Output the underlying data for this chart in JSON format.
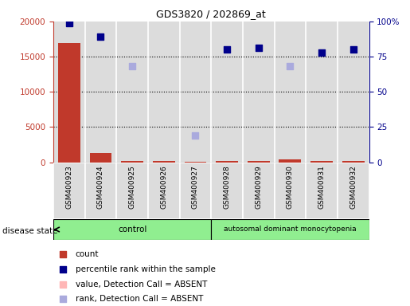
{
  "title": "GDS3820 / 202869_at",
  "samples": [
    "GSM400923",
    "GSM400924",
    "GSM400925",
    "GSM400926",
    "GSM400927",
    "GSM400928",
    "GSM400929",
    "GSM400930",
    "GSM400931",
    "GSM400932"
  ],
  "count": [
    16900,
    1300,
    200,
    150,
    100,
    200,
    200,
    400,
    200,
    150
  ],
  "percentile_present": [
    99,
    89,
    null,
    null,
    null,
    80,
    81,
    null,
    78,
    80
  ],
  "percentile_absent": [
    null,
    null,
    68,
    null,
    19,
    null,
    null,
    68,
    null,
    null
  ],
  "control_group": [
    0,
    1,
    2,
    3,
    4
  ],
  "disease_group": [
    5,
    6,
    7,
    8,
    9
  ],
  "control_label": "control",
  "disease_label": "autosomal dominant monocytopenia",
  "ylim_left": [
    0,
    20000
  ],
  "ylim_right": [
    0,
    100
  ],
  "yticks_left": [
    0,
    5000,
    10000,
    15000,
    20000
  ],
  "yticks_right": [
    0,
    25,
    50,
    75,
    100
  ],
  "yticklabels_right": [
    "0",
    "25",
    "50",
    "75",
    "100%"
  ],
  "bar_color": "#c0392b",
  "present_color": "#00008B",
  "absent_rank_color": "#AAAADD",
  "absent_value_color": "#FFB6B6",
  "legend_items": [
    {
      "label": "count",
      "color": "#c0392b",
      "marker": "s"
    },
    {
      "label": "percentile rank within the sample",
      "color": "#00008B",
      "marker": "s"
    },
    {
      "label": "value, Detection Call = ABSENT",
      "color": "#FFB6B6",
      "marker": "s"
    },
    {
      "label": "rank, Detection Call = ABSENT",
      "color": "#AAAADD",
      "marker": "s"
    }
  ]
}
